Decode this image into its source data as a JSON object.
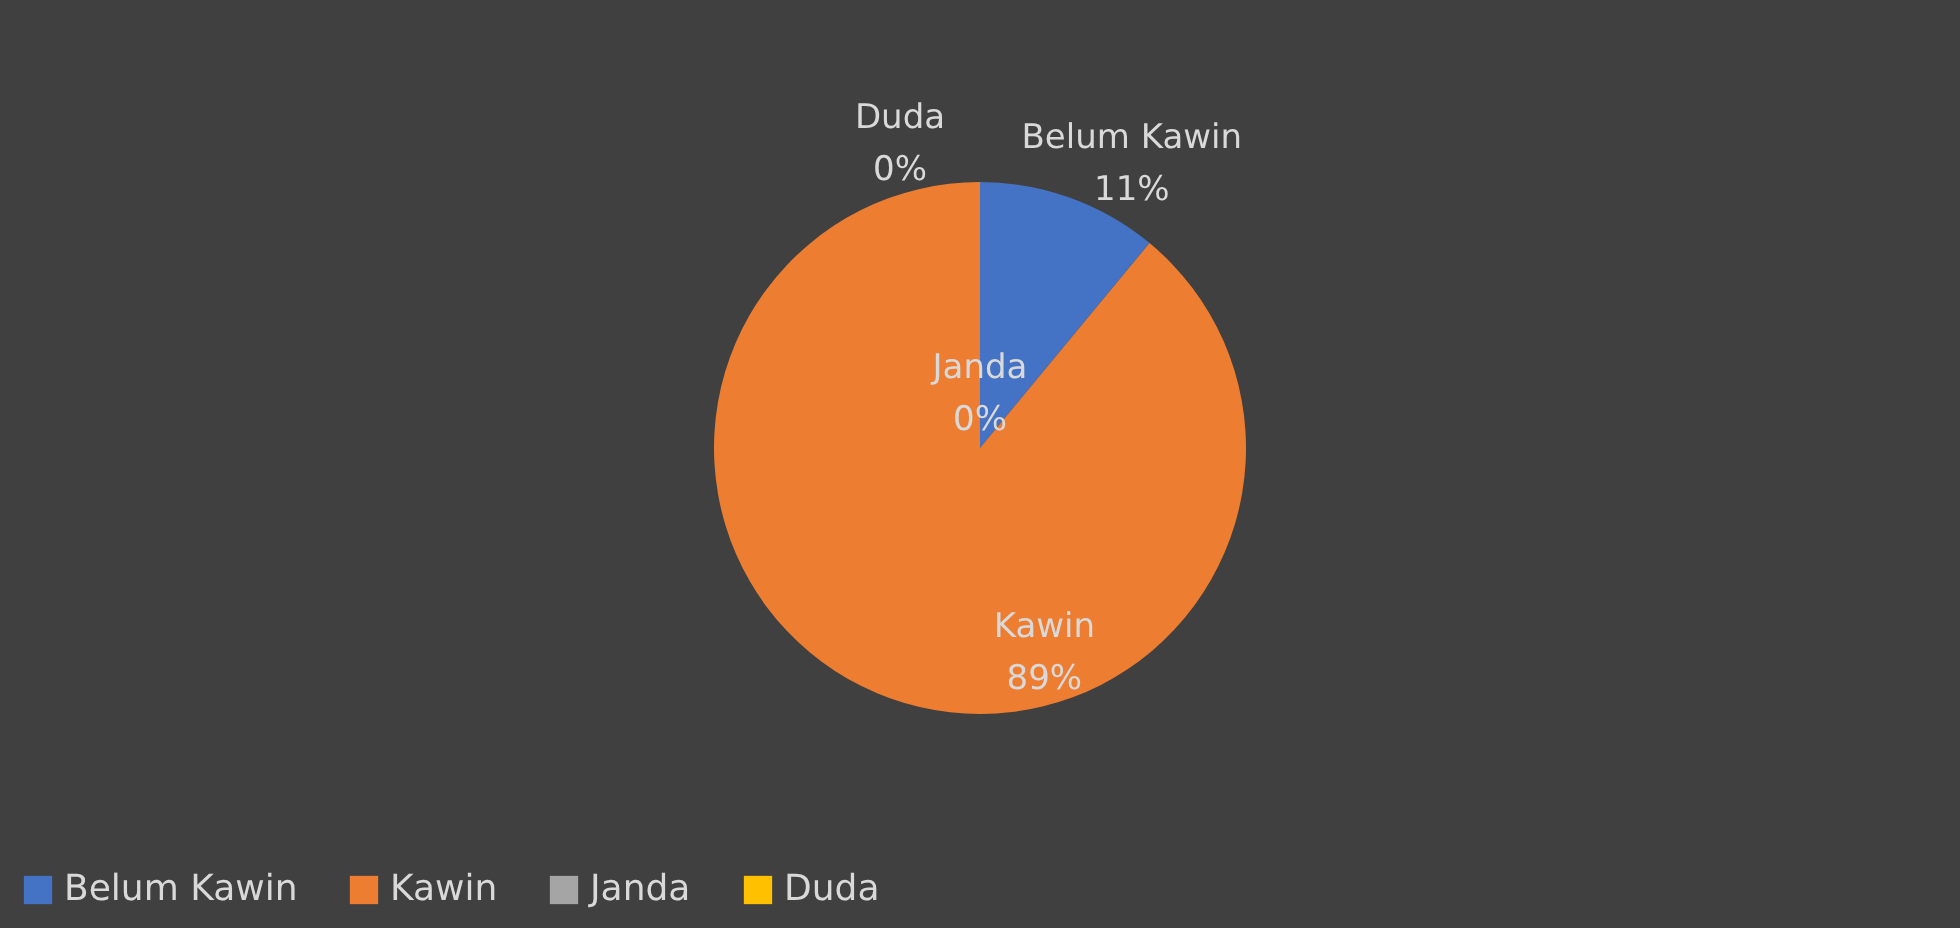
{
  "chart_data": {
    "type": "pie",
    "categories": [
      "Belum Kawin",
      "Kawin",
      "Janda",
      "Duda"
    ],
    "values": [
      11,
      89,
      0,
      0
    ],
    "colors": [
      "#4472c4",
      "#ed7d31",
      "#a5a5a5",
      "#ffc000"
    ],
    "value_labels": [
      "11%",
      "89%",
      "0%",
      "0%"
    ],
    "legend": "bottom"
  }
}
